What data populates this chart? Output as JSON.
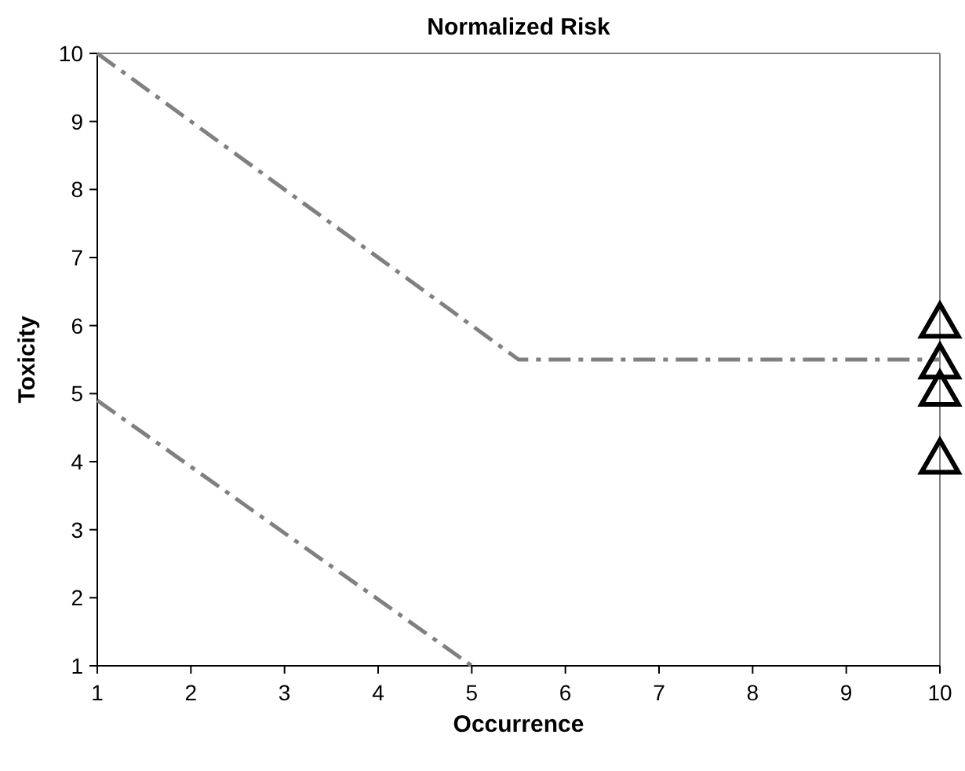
{
  "chart_data": {
    "type": "line",
    "title": "Normalized Risk",
    "xlabel": "Occurrence",
    "ylabel": "Toxicity",
    "xlim": [
      1,
      10
    ],
    "ylim": [
      1,
      10
    ],
    "xticks": [
      1,
      2,
      3,
      4,
      5,
      6,
      7,
      8,
      9,
      10
    ],
    "yticks": [
      1,
      2,
      3,
      4,
      5,
      6,
      7,
      8,
      9,
      10
    ],
    "grid": false,
    "series": [
      {
        "color": "#808080",
        "x": [
          1,
          5.5,
          10
        ],
        "values": [
          10,
          5.5,
          5.5
        ],
        "line_style": "dashed",
        "marker": "none"
      },
      {
        "color": "#808080",
        "x": [
          1,
          5
        ],
        "values": [
          4.9,
          1
        ],
        "line_style": "dashed",
        "marker": "none"
      },
      {
        "type": "scatter",
        "color": "#000000",
        "x": [
          10,
          10,
          10,
          10
        ],
        "values": [
          6,
          5.4,
          5,
          4
        ],
        "marker": "triangle"
      }
    ]
  }
}
